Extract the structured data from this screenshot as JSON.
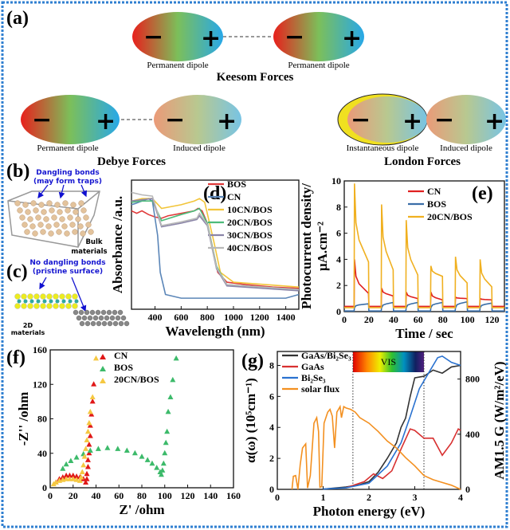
{
  "panel_labels": {
    "a": "(a)",
    "b": "(b)",
    "c": "(c)",
    "d": "(d)",
    "e": "(e)",
    "f": "(f)",
    "g": "(g)"
  },
  "forces": {
    "keesom": {
      "title": "Keesom Forces",
      "left": "Permanent dipole",
      "right": "Permanent dipole"
    },
    "debye": {
      "title": "Debye Forces",
      "left": "Permanent dipole",
      "right": "Induced dipole"
    },
    "london": {
      "title": "London Forces",
      "left": "Instantaneous dipole",
      "right": "Induced dipole"
    },
    "minus": "−",
    "plus": "+"
  },
  "panel_b": {
    "note1": "Dangling bonds",
    "note2": "(may form traps)",
    "label1": "Bulk",
    "label2": "materials"
  },
  "panel_c": {
    "note1": "No dangling bonds",
    "note2": "(pristine surface)",
    "label1": "2D",
    "label2": "materials"
  },
  "colors": {
    "BOS": "#e03a3a",
    "CN": "#5b86b8",
    "10CN/BOS": "#f2c53a",
    "20CN/BOS": "#4dbb7a",
    "30CN/BOS": "#8a84a8",
    "40CN/BOS": "#b8b8b8",
    "border": "#2f7fd0"
  },
  "chart_data": [
    {
      "id": "d",
      "type": "line",
      "xlabel": "Wavelength (nm)",
      "ylabel": "Absorbance /a.u.",
      "xlim": [
        220,
        1500
      ],
      "ylim": [
        0,
        1.05
      ],
      "xticks": [
        400,
        600,
        800,
        1000,
        1200,
        1400
      ],
      "series": [
        {
          "name": "BOS",
          "color": "#e03a3a",
          "x": [
            220,
            260,
            300,
            350,
            400,
            450,
            500,
            600,
            700,
            730,
            760,
            800,
            850,
            880,
            950,
            1100,
            1300,
            1500
          ],
          "y": [
            0.8,
            0.78,
            0.8,
            0.77,
            0.75,
            0.74,
            0.76,
            0.78,
            0.8,
            0.82,
            0.8,
            0.7,
            0.45,
            0.3,
            0.22,
            0.2,
            0.18,
            0.17
          ]
        },
        {
          "name": "CN",
          "color": "#5b86b8",
          "x": [
            220,
            250,
            300,
            350,
            380,
            420,
            440,
            480,
            600,
            900,
            1200,
            1400,
            1500
          ],
          "y": [
            0.85,
            0.86,
            0.88,
            0.9,
            0.88,
            0.6,
            0.3,
            0.12,
            0.09,
            0.09,
            0.09,
            0.09,
            0.12
          ]
        },
        {
          "name": "10CN/BOS",
          "color": "#f2c53a",
          "x": [
            220,
            300,
            380,
            450,
            600,
            700,
            740,
            780,
            850,
            900,
            1000,
            1500
          ],
          "y": [
            0.88,
            0.9,
            0.9,
            0.82,
            0.85,
            0.88,
            0.9,
            0.87,
            0.55,
            0.3,
            0.22,
            0.18
          ]
        },
        {
          "name": "20CN/BOS",
          "color": "#4dbb7a",
          "x": [
            220,
            300,
            380,
            450,
            600,
            700,
            740,
            800,
            870,
            950,
            1500
          ],
          "y": [
            0.87,
            0.88,
            0.88,
            0.72,
            0.77,
            0.8,
            0.82,
            0.7,
            0.35,
            0.2,
            0.16
          ]
        },
        {
          "name": "30CN/BOS",
          "color": "#8a84a8",
          "x": [
            220,
            300,
            380,
            450,
            600,
            720,
            740,
            800,
            870,
            950,
            1500
          ],
          "y": [
            0.88,
            0.89,
            0.9,
            0.67,
            0.7,
            0.73,
            0.76,
            0.68,
            0.33,
            0.19,
            0.15
          ]
        },
        {
          "name": "40CN/BOS",
          "color": "#b8b8b8",
          "x": [
            220,
            300,
            380,
            450,
            600,
            720,
            740,
            800,
            870,
            950,
            1500
          ],
          "y": [
            0.95,
            0.93,
            0.92,
            0.68,
            0.71,
            0.74,
            0.78,
            0.69,
            0.34,
            0.2,
            0.16
          ]
        }
      ]
    },
    {
      "id": "e",
      "type": "line",
      "xlabel": "Time / sec",
      "ylabel": "Photocurrent density/",
      "ylabel2": "μA.cm⁻²",
      "xlim": [
        0,
        130
      ],
      "ylim": [
        0,
        10
      ],
      "xticks": [
        0,
        20,
        40,
        60,
        80,
        100,
        120
      ],
      "yticks": [
        0,
        2,
        4,
        6,
        8,
        10
      ],
      "light_on": [
        [
          8,
          20
        ],
        [
          30,
          40
        ],
        [
          50,
          60
        ],
        [
          70,
          80
        ],
        [
          90,
          100
        ],
        [
          110,
          120
        ]
      ],
      "series": [
        {
          "name": "CN",
          "color": "#e02020",
          "dark": 0.4,
          "peaks": [
            4.0,
            1.8,
            1.5,
            1.5,
            1.1,
            1.0
          ],
          "ends": [
            1.4,
            1.2,
            1.0,
            0.9,
            1.0,
            0.9
          ]
        },
        {
          "name": "BOS",
          "color": "#3a6ea8",
          "dark": 0.05,
          "peaks": [
            0.3,
            0.3,
            0.3,
            0.3,
            0.3,
            0.3
          ],
          "ends": [
            0.6,
            0.7,
            0.7,
            0.7,
            0.75,
            0.65
          ]
        },
        {
          "name": "20CN/BOS",
          "color": "#f0b020",
          "dark": 0.3,
          "peaks": [
            9.8,
            8.2,
            7.0,
            3.5,
            4.2,
            4.0
          ],
          "ends": [
            3.8,
            3.2,
            2.8,
            2.7,
            2.2,
            1.9
          ]
        }
      ]
    },
    {
      "id": "f",
      "type": "scatter",
      "xlabel": "Z' /ohm",
      "ylabel": "-Z'' /ohm",
      "xlim": [
        0,
        160
      ],
      "ylim": [
        0,
        160
      ],
      "xticks": [
        0,
        20,
        40,
        60,
        80,
        100,
        120,
        140,
        160
      ],
      "yticks": [
        0,
        40,
        80,
        120,
        160
      ],
      "series": [
        {
          "name": "CN",
          "color": "#e01818",
          "x": [
            5,
            8,
            11,
            14,
            17,
            20,
            23,
            26,
            29,
            31,
            32,
            32,
            33,
            33,
            34,
            34,
            35,
            35,
            36,
            37,
            38
          ],
          "y": [
            6,
            10,
            12,
            14,
            14,
            14,
            13,
            12,
            10,
            6,
            10,
            16,
            24,
            32,
            40,
            50,
            60,
            72,
            85,
            100,
            120
          ]
        },
        {
          "name": "BOS",
          "color": "#3cba6a",
          "x": [
            11,
            14,
            18,
            23,
            29,
            35,
            42,
            50,
            59,
            67,
            74,
            80,
            85,
            89,
            93,
            96,
            97,
            98,
            99,
            100,
            101,
            102,
            103,
            105,
            107,
            110
          ],
          "y": [
            22,
            27,
            31,
            35,
            39,
            43,
            45,
            46,
            45,
            43,
            40,
            36,
            32,
            28,
            23,
            18,
            15,
            20,
            28,
            40,
            52,
            65,
            88,
            105,
            125,
            150
          ]
        },
        {
          "name": "20CN/BOS",
          "color": "#f5c842",
          "x": [
            3,
            5,
            8,
            11,
            14,
            17,
            20,
            23,
            26,
            27,
            28,
            29,
            30,
            31,
            32,
            33,
            34,
            35,
            37,
            40
          ],
          "y": [
            4,
            6,
            8,
            9,
            10,
            10,
            10,
            9,
            8,
            12,
            18,
            26,
            36,
            45,
            55,
            65,
            75,
            88,
            105,
            150
          ]
        }
      ]
    },
    {
      "id": "g",
      "type": "line",
      "xlabel": "Photon energy (eV)",
      "ylabel": "α(ω) (10⁵cm⁻¹)",
      "ylabel_right": "AM1.5 G (W/m²/eV)",
      "xlim": [
        0,
        4
      ],
      "ylim": [
        0,
        8.9
      ],
      "ylim_right": [
        0,
        1000
      ],
      "xticks": [
        0,
        1,
        2,
        3,
        4
      ],
      "yticks": [
        0,
        2,
        4,
        6,
        8
      ],
      "yticks_right": [
        0,
        400,
        800
      ],
      "band": {
        "label": "VIS",
        "from": 1.65,
        "to": 3.2
      },
      "series": [
        {
          "name": "GaAs/Bi₂Se₃",
          "color": "#333333",
          "axis": "left",
          "x": [
            1.0,
            1.5,
            1.8,
            2.0,
            2.2,
            2.4,
            2.6,
            2.7,
            2.8,
            2.9,
            3.0,
            3.2,
            3.4,
            3.6,
            3.8,
            4.0
          ],
          "y": [
            0.02,
            0.15,
            0.3,
            0.5,
            1.1,
            2.0,
            3.0,
            4.0,
            4.6,
            6.0,
            7.2,
            7.3,
            7.7,
            7.5,
            7.9,
            8.0
          ]
        },
        {
          "name": "GaAs",
          "color": "#d83030",
          "axis": "left",
          "x": [
            1.5,
            1.9,
            2.1,
            2.3,
            2.5,
            2.7,
            2.9,
            3.0,
            3.2,
            3.4,
            3.6,
            3.8,
            3.95,
            4.0
          ],
          "y": [
            0.1,
            0.5,
            1.0,
            0.7,
            1.2,
            2.6,
            3.9,
            3.8,
            3.3,
            3.3,
            2.2,
            3.0,
            3.9,
            3.8
          ]
        },
        {
          "name": "Bi₂Se₃",
          "color": "#2a72d0",
          "axis": "left",
          "x": [
            1.0,
            1.5,
            2.0,
            2.4,
            2.7,
            2.9,
            3.1,
            3.3,
            3.5,
            3.6,
            3.8,
            4.0
          ],
          "y": [
            0.02,
            0.1,
            0.4,
            1.5,
            3.0,
            4.7,
            6.5,
            7.5,
            8.5,
            8.6,
            8.2,
            8.0
          ]
        },
        {
          "name": "solar flux",
          "color": "#f39020",
          "axis": "right",
          "x": [
            0.32,
            0.35,
            0.4,
            0.45,
            0.5,
            0.55,
            0.62,
            0.66,
            0.72,
            0.8,
            0.86,
            0.9,
            0.93,
            0.97,
            1.02,
            1.1,
            1.15,
            1.2,
            1.25,
            1.3,
            1.37,
            1.4,
            1.45,
            1.5,
            1.6,
            1.7,
            1.8,
            2.0,
            2.2,
            2.4,
            2.6,
            2.8,
            3.0,
            3.2,
            3.4,
            3.6,
            3.8,
            4.0
          ],
          "y": [
            0,
            95,
            100,
            0,
            180,
            300,
            330,
            10,
            100,
            480,
            520,
            420,
            15,
            20,
            480,
            560,
            580,
            530,
            300,
            560,
            600,
            520,
            600,
            590,
            580,
            560,
            520,
            480,
            420,
            350,
            300,
            230,
            170,
            100,
            70,
            50,
            30,
            0
          ]
        }
      ]
    }
  ]
}
